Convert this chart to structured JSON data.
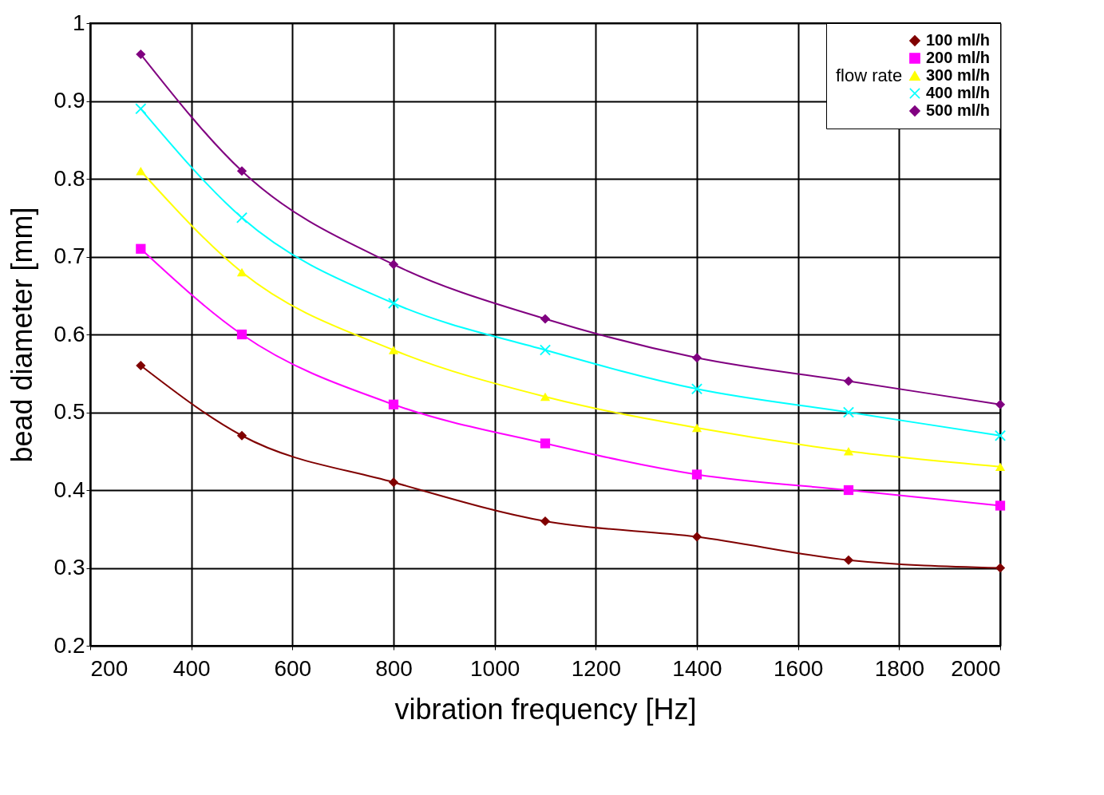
{
  "chart_data": {
    "type": "line",
    "xlabel": "vibration frequency  [Hz]",
    "ylabel": "bead diameter  [mm]",
    "legend_title": "flow rate",
    "x": [
      300,
      500,
      800,
      1100,
      1400,
      1700,
      2000
    ],
    "xlim": [
      200,
      2000
    ],
    "xticks": [
      200,
      400,
      600,
      800,
      1000,
      1200,
      1400,
      1600,
      1800,
      2000
    ],
    "ylim": [
      0.2,
      1
    ],
    "yticks": [
      0.2,
      0.3,
      0.4,
      0.5,
      0.6,
      0.7,
      0.8,
      0.9,
      1
    ],
    "grid": true,
    "legend": "top right",
    "series": [
      {
        "name": "100 ml/h",
        "color": "#800000",
        "marker": "diamond",
        "values": [
          0.56,
          0.47,
          0.41,
          0.36,
          0.34,
          0.31,
          0.3
        ]
      },
      {
        "name": "200 ml/h",
        "color": "#ff00ff",
        "marker": "square",
        "values": [
          0.71,
          0.6,
          0.51,
          0.46,
          0.42,
          0.4,
          0.38
        ]
      },
      {
        "name": "300 ml/h",
        "color": "#ffff00",
        "marker": "triangle",
        "values": [
          0.81,
          0.68,
          0.58,
          0.52,
          0.48,
          0.45,
          0.43
        ]
      },
      {
        "name": "400 ml/h",
        "color": "#00ffff",
        "marker": "cross",
        "values": [
          0.89,
          0.75,
          0.64,
          0.58,
          0.53,
          0.5,
          0.47
        ]
      },
      {
        "name": "500 ml/h",
        "color": "#800080",
        "marker": "diamond",
        "values": [
          0.96,
          0.81,
          0.69,
          0.62,
          0.57,
          0.54,
          0.51
        ]
      }
    ]
  }
}
